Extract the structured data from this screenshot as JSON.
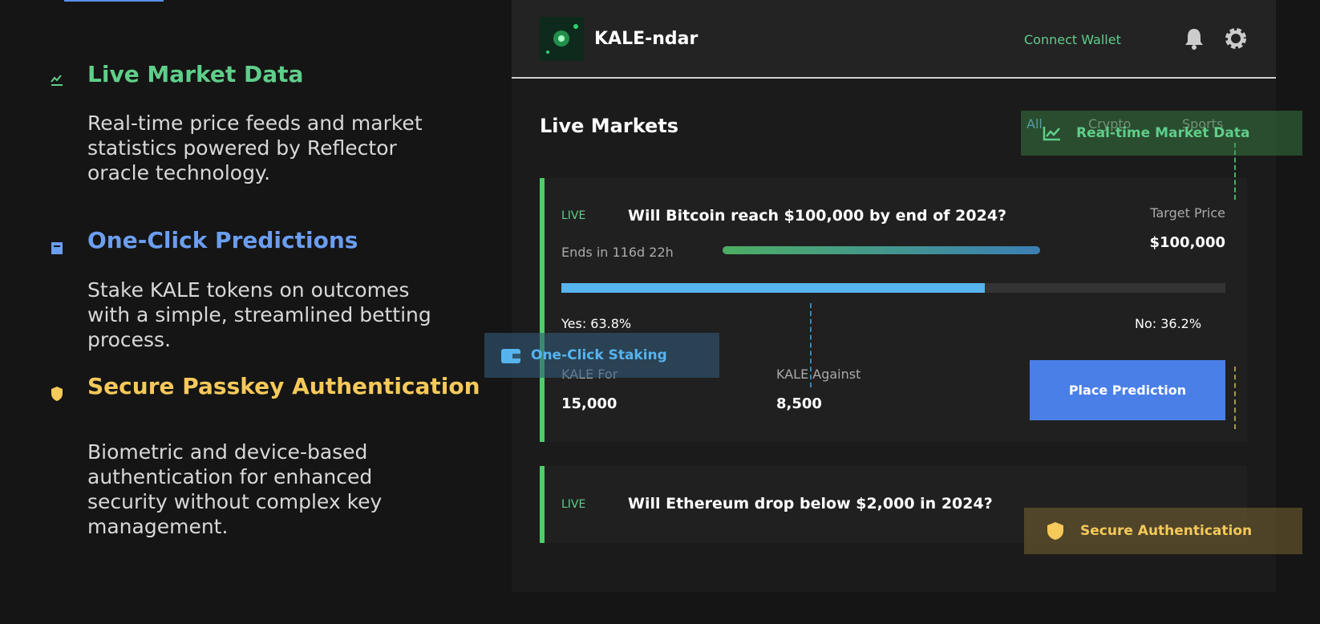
{
  "features": [
    {
      "title": "Live Market Data",
      "description": "Real-time price feeds and market statistics powered by Reflector oracle technology."
    },
    {
      "title": "One-Click Predictions",
      "description": "Stake KALE tokens on outcomes with a simple, streamlined betting process."
    },
    {
      "title": "Secure Passkey Authentication",
      "description": "Biometric and device-based authentication for enhanced security without complex key management."
    }
  ],
  "header": {
    "title": "KALE-ndar",
    "connect": "Connect Wallet"
  },
  "section": {
    "title": "Live Markets",
    "tabs": [
      "All",
      "Crypto",
      "Sports"
    ]
  },
  "markets": [
    {
      "status": "LIVE",
      "question": "Will Bitcoin reach $100,000 by end of 2024?",
      "target_label": "Target Price",
      "target": "$100,000",
      "ends": "Ends in 116d 22h",
      "yes_share": 63.8,
      "yes_label": "Yes: 63.8%",
      "no_label": "No: 36.2%",
      "for_label": "KALE For",
      "for_amount": "15,000",
      "against_label": "KALE Against",
      "against_amount": "8,500",
      "button": "Place Prediction"
    },
    {
      "status": "LIVE",
      "question": "Will Ethereum drop below $2,000 in 2024?"
    }
  ],
  "callouts": {
    "market_data": "Real-time Market Data",
    "staking": "One-Click Staking",
    "auth": "Secure Authentication"
  }
}
